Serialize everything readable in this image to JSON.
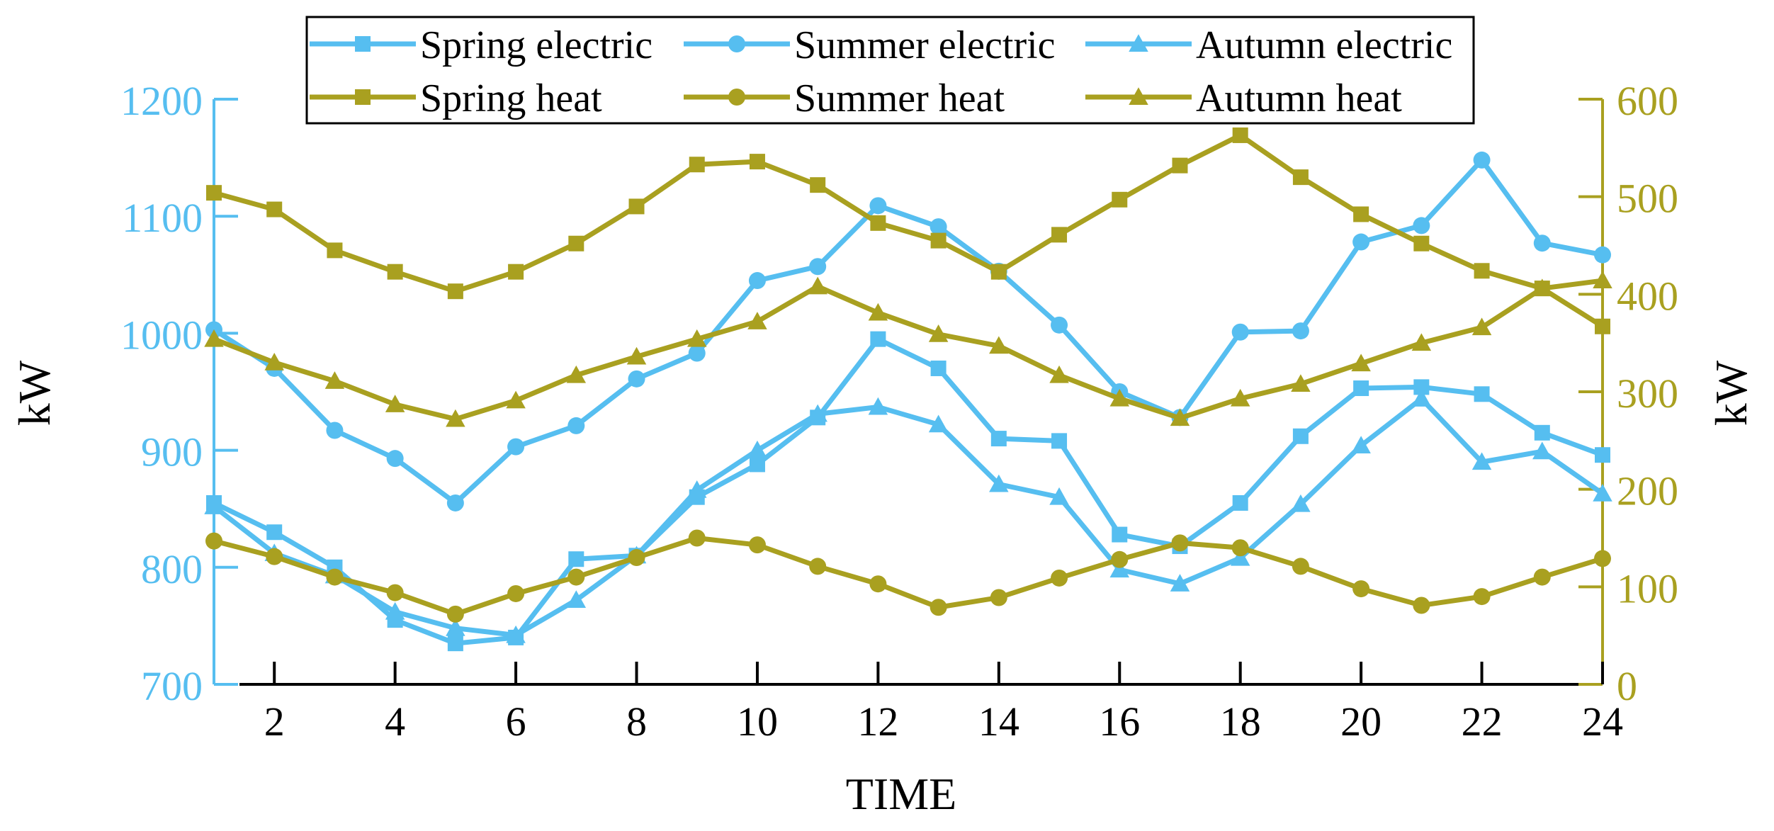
{
  "chart_data": {
    "type": "line",
    "title": "",
    "xlabel": "TIME",
    "ylabel_left": "kW",
    "ylabel_right": "kW",
    "xlim": [
      1,
      24
    ],
    "x_ticks": [
      2,
      4,
      6,
      8,
      10,
      12,
      14,
      16,
      18,
      20,
      22,
      24
    ],
    "x_tick_labels": [
      "2",
      "4",
      "6",
      "8",
      "10",
      "12",
      "14",
      "16",
      "18",
      "20",
      "22",
      "24"
    ],
    "ylim_left": [
      700,
      1200
    ],
    "y_ticks_left": [
      700,
      800,
      900,
      1000,
      1100,
      1200
    ],
    "y_tick_labels_left": [
      "700",
      "800",
      "900",
      "1000",
      "1100",
      "1200"
    ],
    "ylim_right": [
      0,
      600
    ],
    "y_ticks_right": [
      0,
      100,
      200,
      300,
      400,
      500,
      600
    ],
    "y_tick_labels_right": [
      "0",
      "100",
      "200",
      "300",
      "400",
      "500",
      "600"
    ],
    "grid": false,
    "legend_position": "top-center",
    "x": [
      1,
      2,
      3,
      4,
      5,
      6,
      7,
      8,
      9,
      10,
      11,
      12,
      13,
      14,
      15,
      16,
      17,
      18,
      19,
      20,
      21,
      22,
      23,
      24
    ],
    "series": [
      {
        "name": "Spring electric",
        "axis": "left",
        "marker": "square",
        "color": "#56BEF0",
        "values": [
          855,
          830,
          800,
          755,
          735,
          740,
          807,
          810,
          860,
          888,
          928,
          995,
          970,
          910,
          908,
          828,
          818,
          855,
          912,
          953,
          954,
          948,
          915,
          896
        ]
      },
      {
        "name": "Summer electric",
        "axis": "left",
        "marker": "circle",
        "color": "#56BEF0",
        "values": [
          1003,
          970,
          917,
          893,
          855,
          903,
          921,
          961,
          983,
          1045,
          1057,
          1109,
          1091,
          1053,
          1007,
          950,
          928,
          1001,
          1002,
          1078,
          1092,
          1148,
          1077,
          1067
        ]
      },
      {
        "name": "Autumn electric",
        "axis": "left",
        "marker": "triangle",
        "color": "#56BEF0",
        "values": [
          852,
          812,
          793,
          762,
          748,
          742,
          772,
          810,
          866,
          900,
          931,
          937,
          922,
          871,
          860,
          798,
          786,
          808,
          854,
          904,
          944,
          890,
          899,
          863
        ]
      },
      {
        "name": "Spring heat",
        "axis": "right",
        "marker": "square",
        "color": "#A9A020",
        "values": [
          504,
          487,
          445,
          423,
          403,
          423,
          452,
          490,
          533,
          536,
          512,
          473,
          455,
          423,
          461,
          497,
          532,
          563,
          520,
          482,
          452,
          424,
          406,
          367
        ]
      },
      {
        "name": "Summer heat",
        "axis": "right",
        "marker": "circle",
        "color": "#A9A020",
        "values": [
          147,
          131,
          110,
          94,
          72,
          93,
          110,
          130,
          150,
          143,
          121,
          103,
          79,
          89,
          109,
          128,
          145,
          140,
          121,
          98,
          81,
          90,
          110,
          129
        ]
      },
      {
        "name": "Autumn heat",
        "axis": "right",
        "marker": "triangle",
        "color": "#A9A020",
        "values": [
          354,
          330,
          311,
          287,
          272,
          291,
          317,
          336,
          354,
          372,
          408,
          381,
          359,
          347,
          317,
          293,
          273,
          293,
          308,
          329,
          350,
          366,
          406,
          414
        ]
      }
    ],
    "colors": {
      "electric": "#56BEF0",
      "heat": "#A9A020",
      "axis_text": "#000000"
    }
  }
}
